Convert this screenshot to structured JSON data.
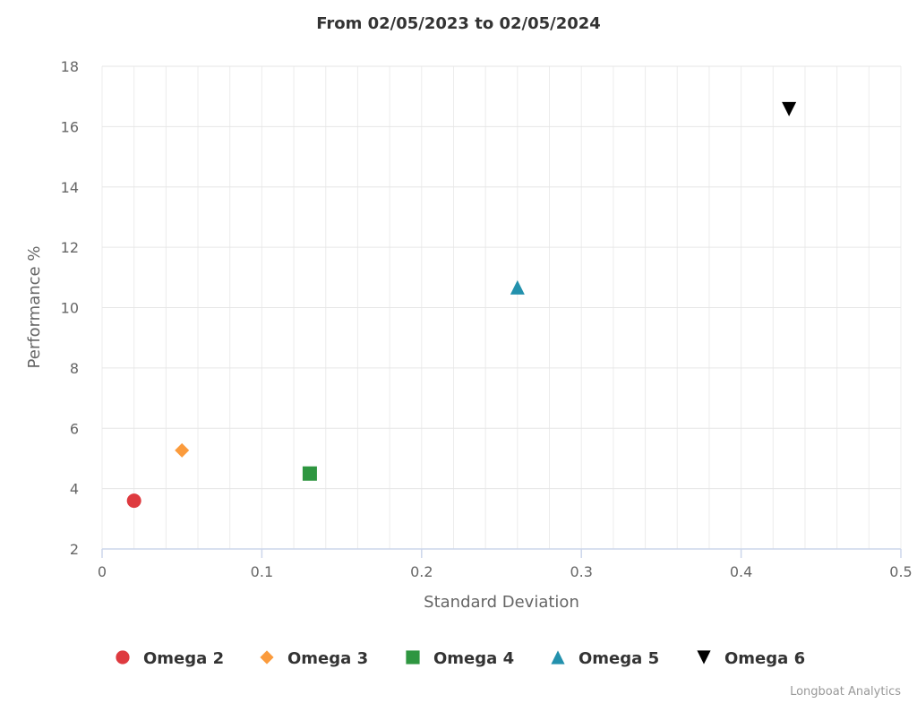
{
  "chart_data": {
    "type": "scatter",
    "title": "From 02/05/2023 to 02/05/2024",
    "xlabel": "Standard Deviation",
    "ylabel": "Performance %",
    "xlim": [
      0,
      0.5
    ],
    "ylim": [
      2,
      18
    ],
    "xticks": [
      "0",
      "0.1",
      "0.2",
      "0.3",
      "0.4",
      "0.5"
    ],
    "yticks": [
      "2",
      "4",
      "6",
      "8",
      "10",
      "12",
      "14",
      "16",
      "18"
    ],
    "grid": true,
    "legend_position": "bottom",
    "series": [
      {
        "name": "Omega 2",
        "marker": "circle",
        "color": "#de3a3f",
        "x": 0.02,
        "y": 3.6
      },
      {
        "name": "Omega 3",
        "marker": "diamond",
        "color": "#fb9b3c",
        "x": 0.05,
        "y": 5.27
      },
      {
        "name": "Omega 4",
        "marker": "square",
        "color": "#2e9640",
        "x": 0.13,
        "y": 4.5
      },
      {
        "name": "Omega 5",
        "marker": "triangle-up",
        "color": "#2391ad",
        "x": 0.26,
        "y": 10.67
      },
      {
        "name": "Omega 6",
        "marker": "triangle-down",
        "color": "#000000",
        "x": 0.43,
        "y": 16.58
      }
    ]
  },
  "credit": "Longboat Analytics"
}
